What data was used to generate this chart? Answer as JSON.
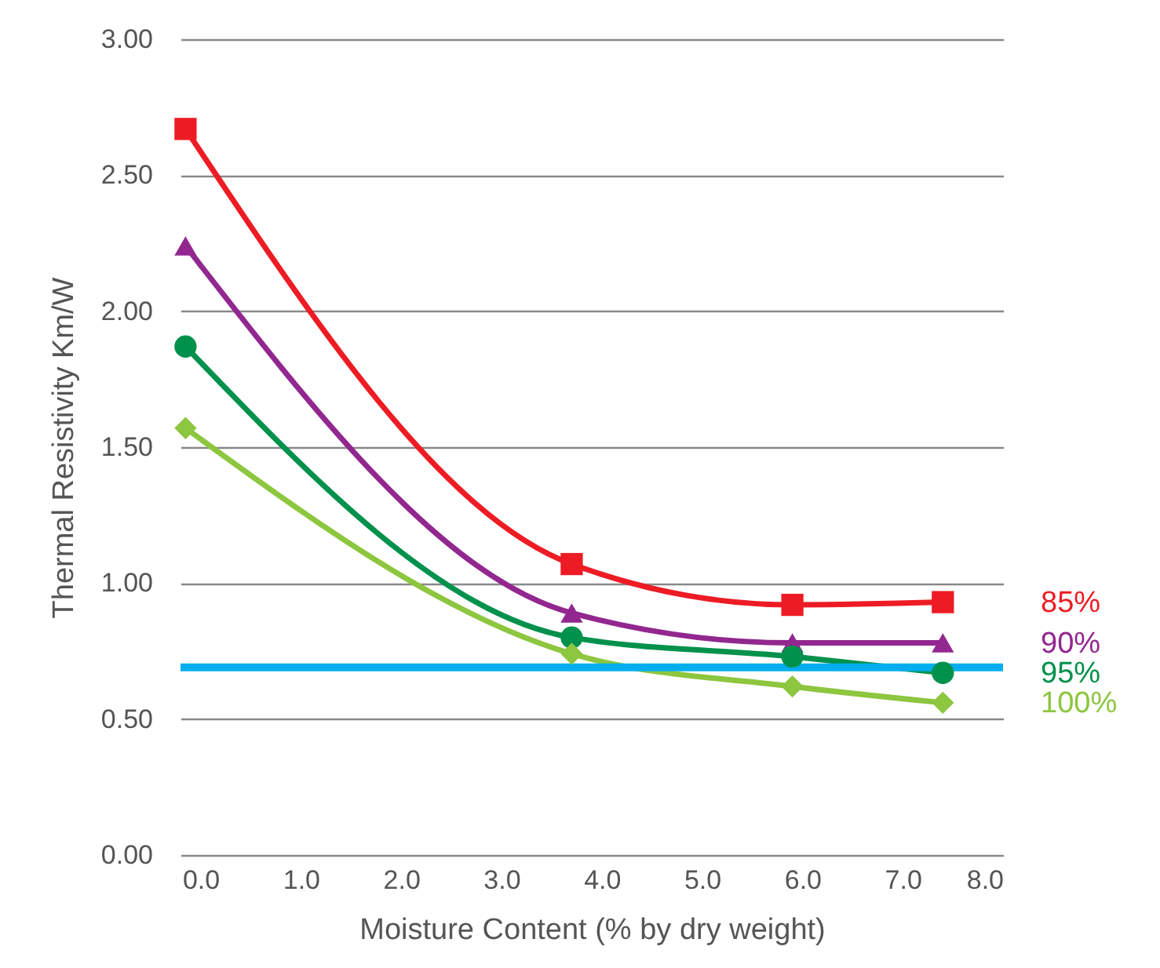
{
  "chart_data": {
    "type": "line",
    "xlabel": "Moisture Content (% by dry weight)",
    "ylabel": "Thermal Resistivity Km/W",
    "x": [
      -0.15,
      3.7,
      5.9,
      7.4
    ],
    "series": [
      {
        "name": "85%",
        "color": "#ed1c24",
        "marker": "square",
        "values": [
          2.67,
          1.07,
          0.92,
          0.93
        ]
      },
      {
        "name": "90%",
        "color": "#92278f",
        "marker": "triangle",
        "values": [
          2.24,
          0.89,
          0.78,
          0.78
        ]
      },
      {
        "name": "95%",
        "color": "#00914c",
        "marker": "circle",
        "values": [
          1.87,
          0.8,
          0.73,
          0.67
        ]
      },
      {
        "name": "100%",
        "color": "#8dc63f",
        "marker": "diamond",
        "values": [
          1.57,
          0.74,
          0.62,
          0.56
        ]
      }
    ],
    "xlim": [
      -0.2,
      8.0
    ],
    "xticks": [
      {
        "value": 0,
        "label": "0.0"
      },
      {
        "value": 1,
        "label": "1.0"
      },
      {
        "value": 2,
        "label": "2.0"
      },
      {
        "value": 3,
        "label": "3.0"
      },
      {
        "value": 4,
        "label": "4.0"
      },
      {
        "value": 5,
        "label": "5.0"
      },
      {
        "value": 6,
        "label": "6.0"
      },
      {
        "value": 7,
        "label": "7.0"
      },
      {
        "value": 8,
        "label": "8.0"
      }
    ],
    "ylim": [
      0,
      3.0
    ],
    "yticks": [
      {
        "value": 0,
        "label": "0.00"
      },
      {
        "value": 0.5,
        "label": "0.50"
      },
      {
        "value": 1,
        "label": "1.00"
      },
      {
        "value": 1.5,
        "label": "1.50"
      },
      {
        "value": 2,
        "label": "2.00"
      },
      {
        "value": 2.5,
        "label": "2.50"
      },
      {
        "value": 3,
        "label": "3.00"
      }
    ],
    "ref_lines": [
      {
        "axis": "y",
        "value": 0.69,
        "color": "#00aeef"
      }
    ],
    "grid": "y",
    "line_style": "solid"
  }
}
